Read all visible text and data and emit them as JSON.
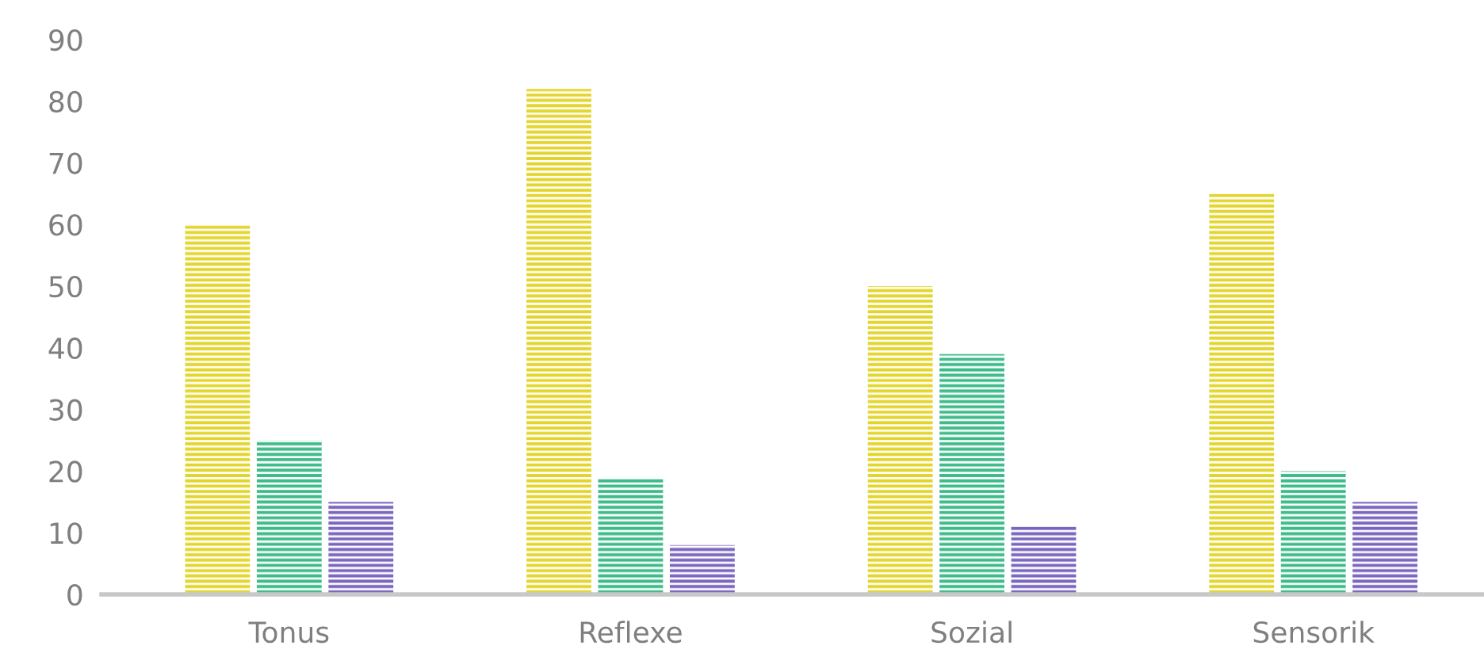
{
  "chart_data": {
    "type": "bar",
    "categories": [
      "Tonus",
      "Reflexe",
      "Sozial",
      "Sensorik"
    ],
    "series": [
      {
        "color": "#e3d52c",
        "values": [
          60,
          82,
          50,
          65
        ]
      },
      {
        "color": "#3dbb8a",
        "values": [
          25,
          19,
          39,
          20
        ]
      },
      {
        "color": "#7a66be",
        "values": [
          15,
          8,
          11,
          15
        ]
      }
    ],
    "ylim": [
      0,
      90
    ],
    "yticks": [
      0,
      10,
      20,
      30,
      40,
      50,
      60,
      70,
      80,
      90
    ],
    "grid": false,
    "legend": false
  }
}
